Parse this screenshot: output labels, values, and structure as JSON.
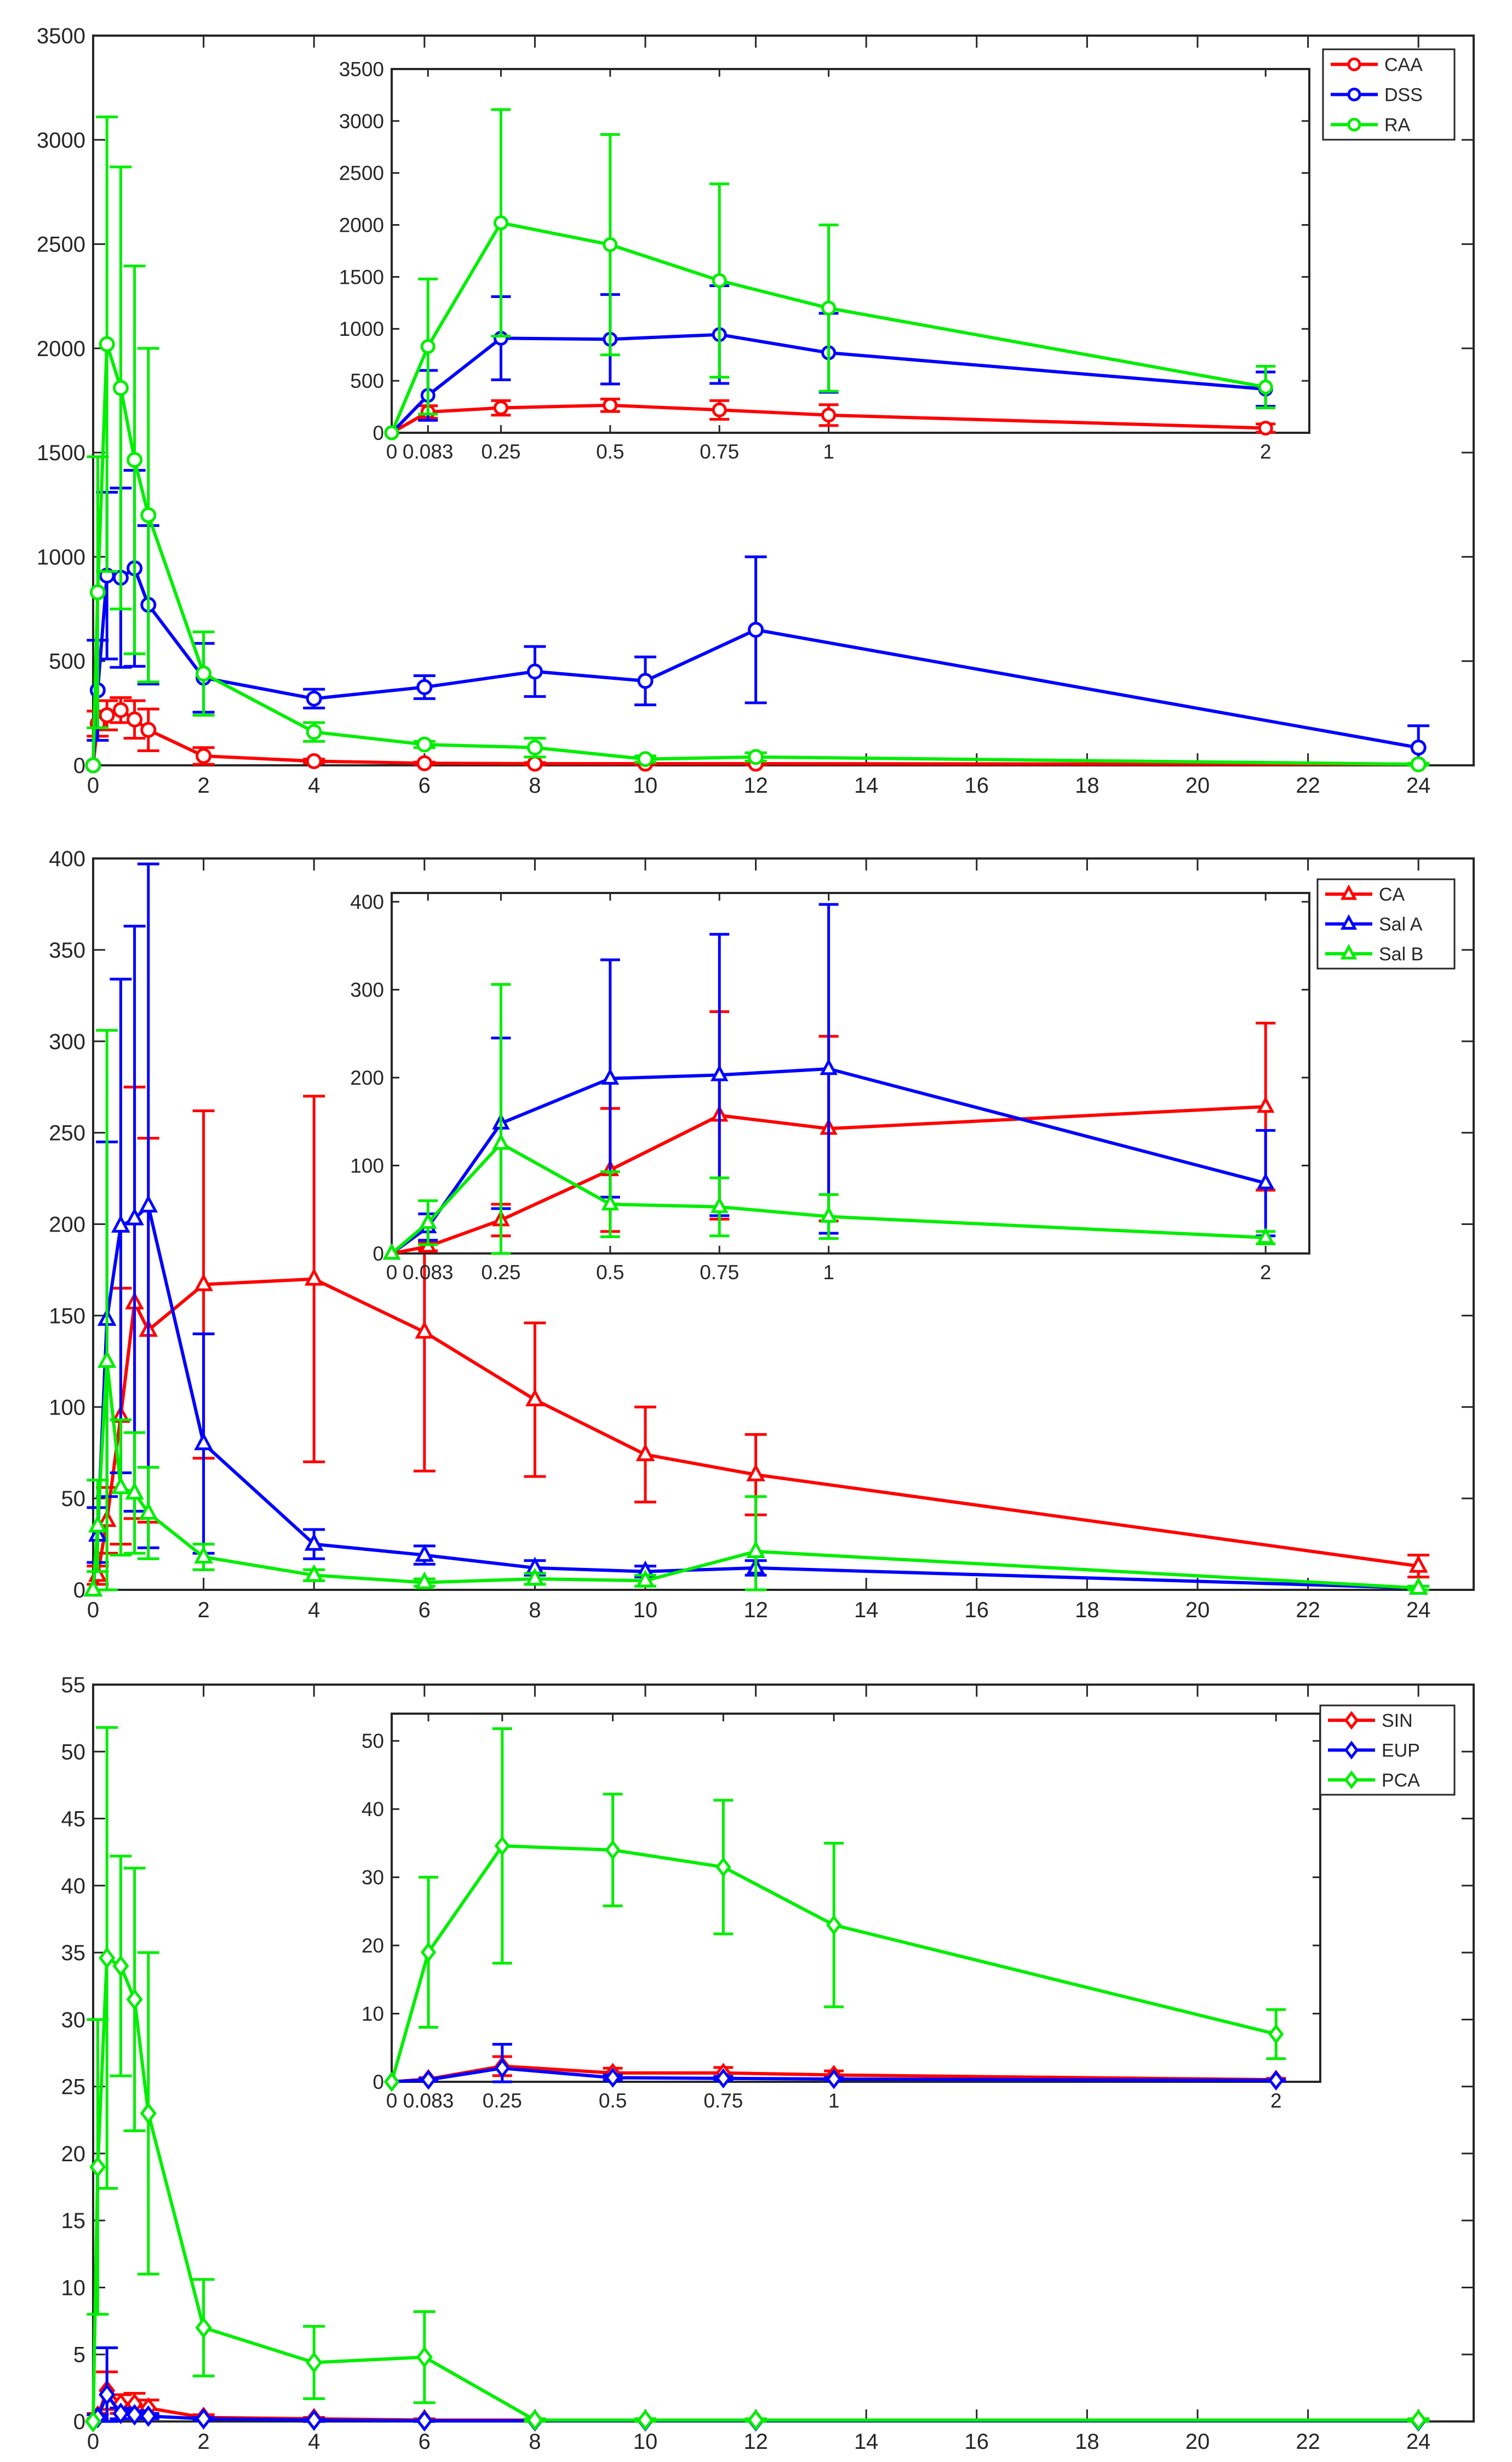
{
  "figure": {
    "description": ""
  },
  "chart_data": [
    {
      "type": "line",
      "title": "",
      "xlabel": "",
      "ylabel": "",
      "xlim": [
        0,
        25
      ],
      "ylim": [
        0,
        3500
      ],
      "xticks": [
        0,
        2,
        4,
        6,
        8,
        10,
        12,
        14,
        16,
        18,
        20,
        22,
        24
      ],
      "yticks": [
        0,
        500,
        1000,
        1500,
        2000,
        2500,
        3000,
        3500
      ],
      "marker": "circle",
      "x": [
        0,
        0.083,
        0.25,
        0.5,
        0.75,
        1,
        2,
        4,
        6,
        8,
        10,
        12,
        24
      ],
      "legend": "top-right",
      "series": [
        {
          "name": "CAA",
          "color": "#ff0000",
          "values": [
            0,
            200,
            240,
            265,
            220,
            170,
            45,
            20,
            10,
            8,
            8,
            8,
            5
          ],
          "errors": [
            0,
            60,
            70,
            60,
            90,
            100,
            40,
            10,
            5,
            5,
            5,
            5,
            3
          ]
        },
        {
          "name": "DSS",
          "color": "#0000ff",
          "values": [
            0,
            360,
            910,
            900,
            945,
            770,
            420,
            320,
            375,
            450,
            405,
            650,
            85
          ],
          "errors": [
            0,
            240,
            400,
            430,
            470,
            380,
            165,
            45,
            55,
            120,
            115,
            350,
            105
          ]
        },
        {
          "name": "RA",
          "color": "#00ee00",
          "values": [
            0,
            830,
            2020,
            1810,
            1465,
            1200,
            440,
            160,
            100,
            85,
            30,
            40,
            5
          ],
          "errors": [
            0,
            650,
            1090,
            1060,
            930,
            800,
            200,
            45,
            15,
            45,
            15,
            20,
            5
          ]
        }
      ],
      "inset": {
        "xlim": [
          0,
          2.1
        ],
        "ylim": [
          0,
          3500
        ],
        "xticks": [
          0,
          0.083,
          0.25,
          0.5,
          0.75,
          1,
          2
        ],
        "xticklabels": [
          "0",
          "0.083",
          "0.25",
          "0.5",
          "0.75",
          "1",
          "2"
        ],
        "yticks": [
          0,
          500,
          1000,
          1500,
          2000,
          2500,
          3000,
          3500
        ],
        "npoints": 7
      }
    },
    {
      "type": "line",
      "title": "",
      "xlabel": "",
      "ylabel": "",
      "xlim": [
        0,
        25
      ],
      "ylim": [
        0,
        400
      ],
      "xticks": [
        0,
        2,
        4,
        6,
        8,
        10,
        12,
        14,
        16,
        18,
        20,
        22,
        24
      ],
      "yticks": [
        0,
        50,
        100,
        150,
        200,
        250,
        300,
        350,
        400
      ],
      "marker": "triangle",
      "x": [
        0,
        0.083,
        0.25,
        0.5,
        0.75,
        1,
        2,
        4,
        6,
        8,
        10,
        12,
        24
      ],
      "legend": "top-right",
      "series": [
        {
          "name": "CA",
          "color": "#ff0000",
          "values": [
            0,
            8,
            38,
            95,
            157,
            142,
            167,
            170,
            141,
            104,
            74,
            63,
            13
          ],
          "errors": [
            0,
            5,
            18,
            70,
            118,
            105,
            95,
            100,
            76,
            42,
            26,
            22,
            6
          ]
        },
        {
          "name": "Sal A",
          "color": "#0000ff",
          "values": [
            0,
            30,
            148,
            199,
            203,
            210,
            80,
            25,
            19,
            12,
            10,
            12,
            1
          ],
          "errors": [
            0,
            15,
            97,
            135,
            160,
            187,
            60,
            8,
            5,
            4,
            3,
            4,
            1
          ]
        },
        {
          "name": "Sal B",
          "color": "#00ee00",
          "values": [
            0,
            35,
            125,
            56,
            53,
            42,
            18,
            8,
            4,
            6,
            5,
            21,
            1
          ],
          "errors": [
            0,
            25,
            181,
            37,
            33,
            25,
            7,
            3,
            2,
            3,
            3,
            30,
            1
          ]
        }
      ],
      "inset": {
        "xlim": [
          0,
          2.1
        ],
        "ylim": [
          0,
          410
        ],
        "xticks": [
          0,
          0.083,
          0.25,
          0.5,
          0.75,
          1,
          2
        ],
        "xticklabels": [
          "0",
          "0.083",
          "0.25",
          "0.5",
          "0.75",
          "1",
          "2"
        ],
        "yticks": [
          0,
          100,
          200,
          300,
          400
        ],
        "npoints": 7
      }
    },
    {
      "type": "line",
      "title": "",
      "xlabel": "",
      "ylabel": "",
      "xlim": [
        0,
        25
      ],
      "ylim": [
        0,
        55
      ],
      "xticks": [
        0,
        2,
        4,
        6,
        8,
        10,
        12,
        14,
        16,
        18,
        20,
        22,
        24
      ],
      "yticks": [
        0,
        5,
        10,
        15,
        20,
        25,
        30,
        35,
        40,
        45,
        50,
        55
      ],
      "marker": "diamond",
      "x": [
        0,
        0.083,
        0.25,
        0.5,
        0.75,
        1,
        2,
        4,
        6,
        8,
        10,
        12,
        24
      ],
      "legend": "top-right",
      "series": [
        {
          "name": "SIN",
          "color": "#ff0000",
          "values": [
            0,
            0.4,
            2.3,
            1.3,
            1.3,
            1.0,
            0.3,
            0.2,
            0.1,
            0.1,
            0.1,
            0.1,
            0.1
          ],
          "errors": [
            0,
            0.2,
            1.4,
            0.7,
            0.8,
            0.6,
            0.2,
            0.1,
            0.1,
            0.1,
            0.1,
            0.1,
            0.1
          ]
        },
        {
          "name": "EUP",
          "color": "#0000ff",
          "values": [
            0,
            0.3,
            2.0,
            0.6,
            0.5,
            0.4,
            0.2,
            0.1,
            0.05,
            0.05,
            0.05,
            0.05,
            0.05
          ],
          "errors": [
            0,
            0.2,
            3.5,
            0.4,
            0.3,
            0.2,
            0.1,
            0.1,
            0.05,
            0.05,
            0.05,
            0.05,
            0.05
          ]
        },
        {
          "name": "PCA",
          "color": "#00ee00",
          "values": [
            0,
            19,
            34.6,
            34,
            31.5,
            23,
            7,
            4.4,
            4.8,
            0.1,
            0.1,
            0.1,
            0.1
          ],
          "errors": [
            0,
            11,
            17.2,
            8.2,
            9.8,
            12,
            3.6,
            2.7,
            3.4,
            0.1,
            0.1,
            0.1,
            0.1
          ]
        }
      ],
      "inset": {
        "xlim": [
          0,
          2.1
        ],
        "ylim": [
          0,
          54
        ],
        "xticks": [
          0,
          0.083,
          0.25,
          0.5,
          0.75,
          1,
          2
        ],
        "xticklabels": [
          "0",
          "0.083",
          "0.25",
          "0.5",
          "0.75",
          "1",
          "2"
        ],
        "yticks": [
          0,
          10,
          20,
          30,
          40,
          50
        ],
        "npoints": 7
      }
    }
  ]
}
